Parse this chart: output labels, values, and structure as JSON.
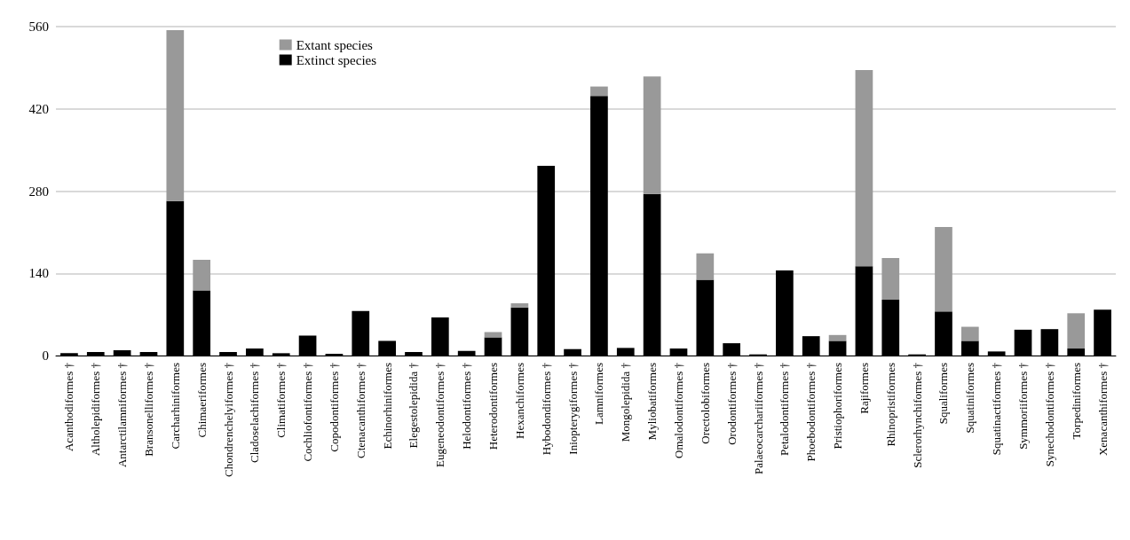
{
  "chart_data": {
    "type": "bar",
    "stacked": true,
    "categories": [
      "Acanthodiformes †",
      "Altholepidiformes †",
      "Antarctilamniformes †",
      "Bransonelliformes †",
      "Carcharhiniformes",
      "Chimaeriformes",
      "Chondrenchelyiformes †",
      "Cladoselachiformes †",
      "Climatiformes †",
      "Cochliofontiformes †",
      "Copodontiformes †",
      "Ctenacanthiformes †",
      "Echinorhiniformes",
      "Elegestolepidida †",
      "Eugeneodontiformes †",
      "Helodontiformes †",
      "Heterodontiformes",
      "Hexanchiformes",
      "Hybodondiformes †",
      "Iniopterygiformes †",
      "Lamniformes",
      "Mongolepidida †",
      "Myliobatiformes",
      "Omalodontiformes †",
      "Orectolobiformes",
      "Orodontiformes †",
      "Palaeocarchariiformes †",
      "Petalodontiformes †",
      "Phoebodontiformes †",
      "Pristiophoriformes",
      "Rajiformes",
      "Rhinopristiformes",
      "Sclerorhynchiformes †",
      "Squaliformes",
      "Squatiniformes",
      "Squatinactiformes †",
      "Symmoriiformes †",
      "Synechodontiformes †",
      "Torpediniformes",
      "Xenacanthiformes †"
    ],
    "series": [
      {
        "name": "Extinct species",
        "color": "#000000",
        "values": [
          4,
          6,
          9,
          6,
          263,
          111,
          6,
          12,
          4,
          34,
          3,
          76,
          25,
          6,
          65,
          8,
          31,
          82,
          323,
          11,
          442,
          13,
          275,
          12,
          129,
          21,
          2,
          145,
          33,
          25,
          152,
          95,
          2,
          75,
          25,
          7,
          44,
          45,
          12,
          78
        ]
      },
      {
        "name": "Extant species",
        "color": "#999999",
        "values": [
          null,
          null,
          null,
          null,
          291,
          52,
          null,
          null,
          null,
          null,
          null,
          null,
          null,
          null,
          null,
          null,
          9,
          7,
          null,
          null,
          16,
          null,
          200,
          null,
          45,
          null,
          null,
          null,
          null,
          10,
          334,
          71,
          null,
          144,
          24,
          null,
          null,
          null,
          60,
          null
        ]
      }
    ],
    "ylim": [
      0,
      560
    ],
    "yticks": [
      0,
      140,
      280,
      420,
      560
    ],
    "grid": "y",
    "legend": "top left"
  }
}
